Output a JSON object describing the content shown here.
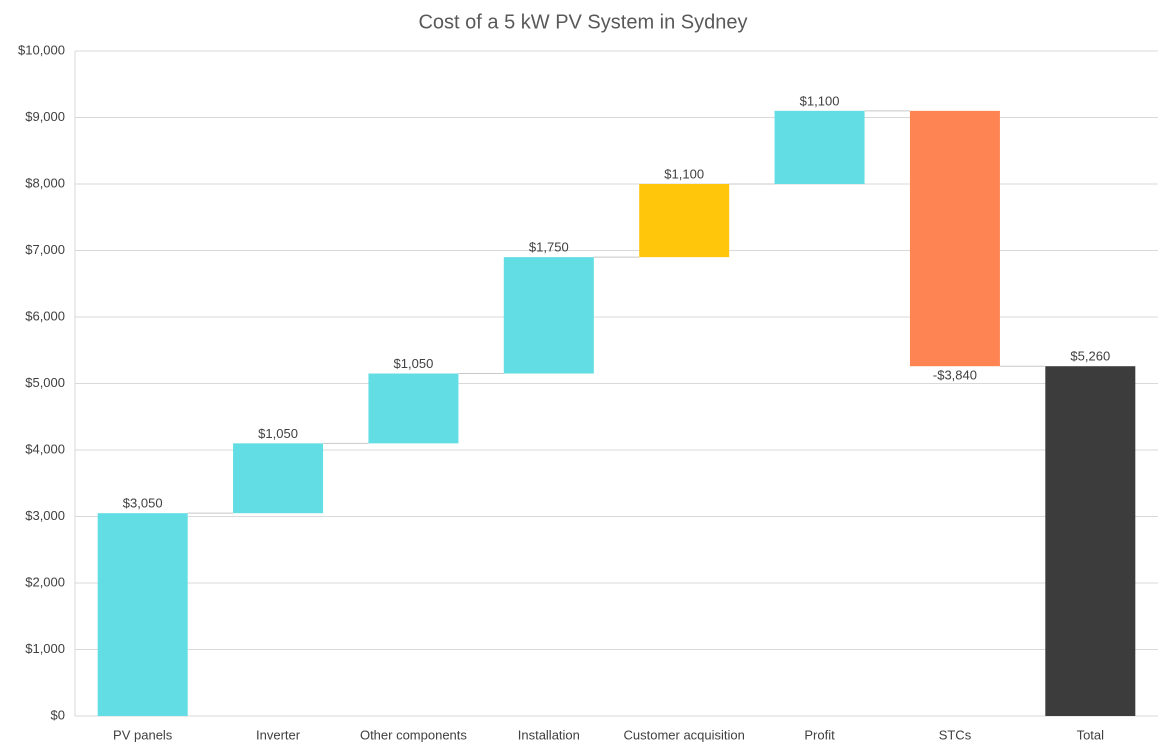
{
  "chart_data": {
    "type": "waterfall",
    "title": "Cost of a 5 kW PV System in Sydney",
    "categories": [
      "PV panels",
      "Inverter",
      "Other components",
      "Installation",
      "Customer acquisition",
      "Profit",
      "STCs",
      "Total"
    ],
    "values": [
      3050,
      1050,
      1050,
      1750,
      1100,
      1100,
      -3840,
      5260
    ],
    "value_labels": [
      "$3,050",
      "$1,050",
      "$1,050",
      "$1,750",
      "$1,100",
      "$1,100",
      "-$3,840",
      "$5,260"
    ],
    "totals": [
      false,
      false,
      false,
      false,
      false,
      false,
      false,
      true
    ],
    "colors": [
      "#61dde3",
      "#61dde3",
      "#61dde3",
      "#61dde3",
      "#ffc60b",
      "#61dde3",
      "#ff8454",
      "#3c3c3c"
    ],
    "ylim": [
      0,
      10000
    ],
    "yticks": [
      {
        "value": 0,
        "label": "$0"
      },
      {
        "value": 1000,
        "label": "$1,000"
      },
      {
        "value": 2000,
        "label": "$2,000"
      },
      {
        "value": 3000,
        "label": "$3,000"
      },
      {
        "value": 4000,
        "label": "$4,000"
      },
      {
        "value": 5000,
        "label": "$5,000"
      },
      {
        "value": 6000,
        "label": "$6,000"
      },
      {
        "value": 7000,
        "label": "$7,000"
      },
      {
        "value": 8000,
        "label": "$8,000"
      },
      {
        "value": 9000,
        "label": "$9,000"
      },
      {
        "value": 10000,
        "label": "$10,000"
      }
    ],
    "grid": true
  }
}
